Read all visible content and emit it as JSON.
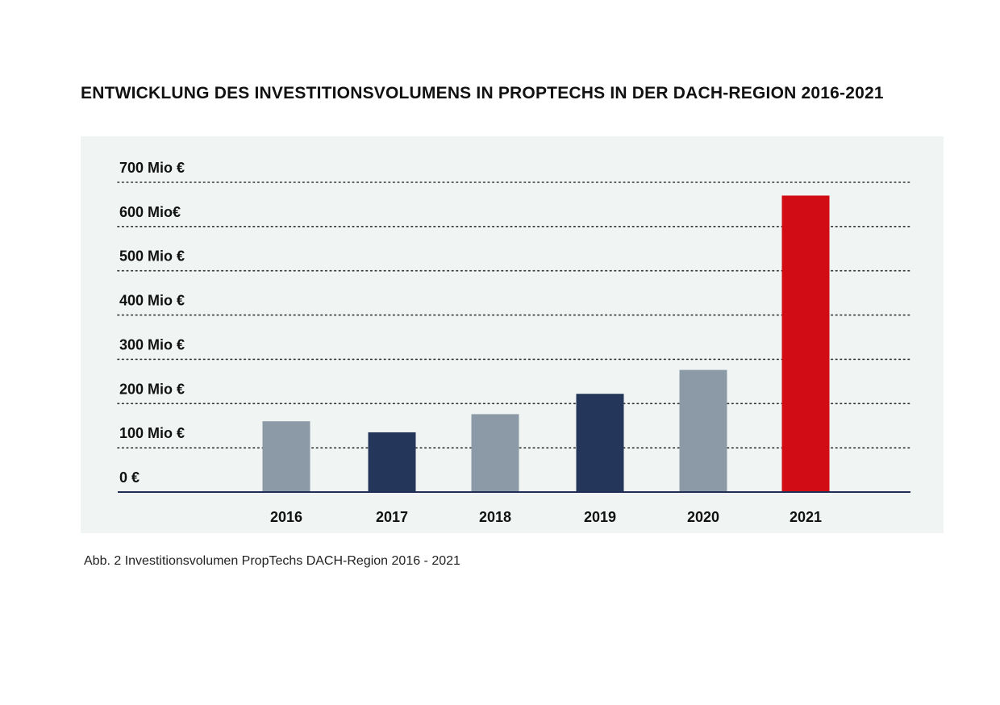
{
  "title": "ENTWICKLUNG DES INVESTITIONSVOLUMENS IN PROPTECHS IN DER DACH-REGION 2016-2021",
  "caption": "Abb. 2 Investitionsvolumen PropTechs DACH-Region 2016 - 2021",
  "colors": {
    "panel_background": "#f0f5f4",
    "baseline": "#1f2f55",
    "gridline": "#333333"
  },
  "chart_data": {
    "type": "bar",
    "categories": [
      "2016",
      "2017",
      "2018",
      "2019",
      "2020",
      "2021"
    ],
    "values": [
      160,
      135,
      176,
      222,
      276,
      670
    ],
    "bar_colors": [
      "#8b9aa6",
      "#24375a",
      "#8b9aa6",
      "#24375a",
      "#8b9aa6",
      "#d20c14"
    ],
    "title": "",
    "xlabel": "",
    "ylabel": "",
    "ylim": [
      0,
      700
    ],
    "yticks": [
      {
        "value": 0,
        "label": "0 €"
      },
      {
        "value": 100,
        "label": "100 Mio €"
      },
      {
        "value": 200,
        "label": "200 Mio €"
      },
      {
        "value": 300,
        "label": "300 Mio €"
      },
      {
        "value": 400,
        "label": "400 Mio €"
      },
      {
        "value": 500,
        "label": "500 Mio €"
      },
      {
        "value": 600,
        "label": "600 Mio€"
      },
      {
        "value": 700,
        "label": "700 Mio €"
      }
    ],
    "grid": "dotted horizontal",
    "legend": "none"
  }
}
